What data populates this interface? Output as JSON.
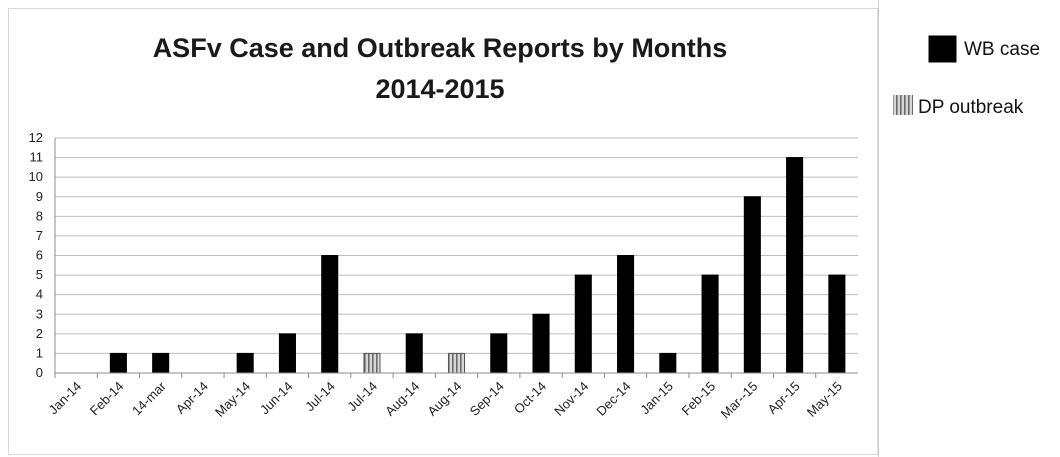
{
  "chart_data": {
    "type": "bar",
    "title": [
      "ASFv Case and Outbreak Reports by Months",
      "2014-2015"
    ],
    "xlabel": "",
    "ylabel": "",
    "ylim": [
      0,
      12
    ],
    "yticks": [
      "0",
      "1",
      "2",
      "3",
      "4",
      "5",
      "6",
      "7",
      "8",
      "9",
      "10",
      "11",
      "12"
    ],
    "grid": true,
    "legend_placement": "right",
    "categories": [
      "Jan-14",
      "Feb-14",
      "14-mar",
      "Apr-14",
      "May-14",
      "Jun-14",
      "Jul-14",
      "Jul-14",
      "Aug-14",
      "Aug-14",
      "Sep-14",
      "Oct-14",
      "Nov-14",
      "Dec-14",
      "Jan-15",
      "Feb-15",
      "Mar--15",
      "Apr-15",
      "May-15"
    ],
    "values": [
      0,
      1,
      1,
      0,
      1,
      2,
      6,
      1,
      2,
      1,
      2,
      3,
      5,
      6,
      1,
      5,
      9,
      11,
      5
    ],
    "bar_series": [
      "WB case",
      "WB case",
      "WB case",
      "WB case",
      "WB case",
      "WB case",
      "WB case",
      "DP outbreak",
      "WB case",
      "DP outbreak",
      "WB case",
      "WB case",
      "WB case",
      "WB case",
      "WB case",
      "WB case",
      "WB case",
      "WB case",
      "WB case"
    ],
    "legend": [
      {
        "name": "WB case",
        "color": "#000000",
        "pattern": "solid"
      },
      {
        "name": "DP outbreak",
        "color": "#aaaaaa",
        "pattern": "vertical-stripes"
      }
    ]
  }
}
